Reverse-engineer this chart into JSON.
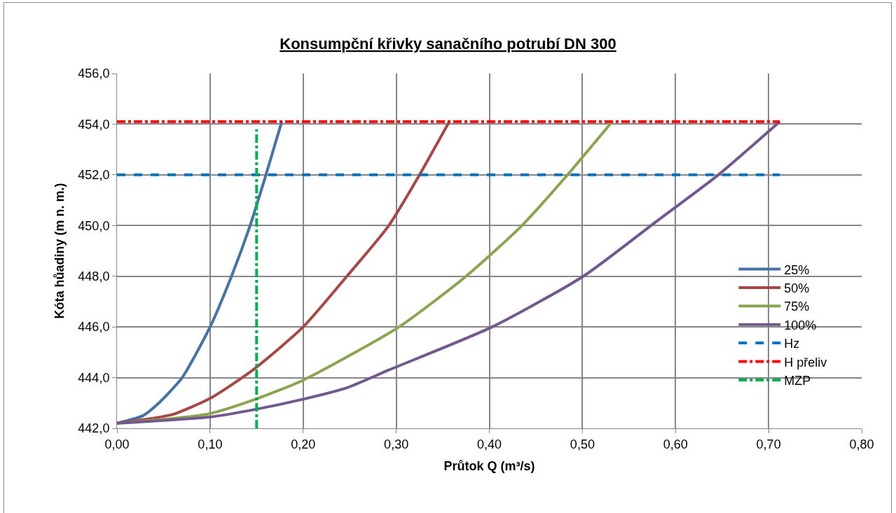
{
  "chart_data": {
    "type": "line",
    "title": "Konsumpční křivky sanačního potrubí DN 300",
    "xlabel": "Průtok Q (m³/s)",
    "ylabel": "Kóta hůadiny (m n. m.)",
    "xlim": [
      0,
      0.8
    ],
    "xticks": [
      {
        "value": 0,
        "label": "0,00"
      },
      {
        "value": 0.1,
        "label": "0,10"
      },
      {
        "value": 0.2,
        "label": "0,20"
      },
      {
        "value": 0.3,
        "label": "0,30"
      },
      {
        "value": 0.4,
        "label": "0,40"
      },
      {
        "value": 0.5,
        "label": "0,50"
      },
      {
        "value": 0.6,
        "label": "0,60"
      },
      {
        "value": 0.7,
        "label": "0,70"
      },
      {
        "value": 0.8,
        "label": "0,80"
      }
    ],
    "ylim": [
      442,
      456
    ],
    "yticks": [
      {
        "value": 442,
        "label": "442,0"
      },
      {
        "value": 444,
        "label": "444,0"
      },
      {
        "value": 446,
        "label": "446,0"
      },
      {
        "value": 448,
        "label": "448,0"
      },
      {
        "value": 450,
        "label": "450,0"
      },
      {
        "value": 452,
        "label": "452,0"
      },
      {
        "value": 454,
        "label": "454,0"
      },
      {
        "value": 456,
        "label": "456,0"
      }
    ],
    "grid": true,
    "legend": "right",
    "marker": "none",
    "series": [
      {
        "name": "25%",
        "color": "#4572a7",
        "line_style": "solid",
        "x": [
          0,
          0.028,
          0.045,
          0.07,
          0.1,
          0.123,
          0.143,
          0.16,
          0.177
        ],
        "values": [
          442.2,
          442.5,
          443.0,
          444.0,
          446.0,
          448.0,
          450.0,
          452.0,
          454.1
        ]
      },
      {
        "name": "50%",
        "color": "#aa4643",
        "line_style": "solid",
        "x": [
          0,
          0.06,
          0.101,
          0.146,
          0.2,
          0.247,
          0.292,
          0.325,
          0.357
        ],
        "values": [
          442.2,
          442.55,
          443.2,
          444.3,
          446.0,
          448.0,
          450.0,
          452.0,
          454.1
        ]
      },
      {
        "name": "75%",
        "color": "#89a54e",
        "line_style": "solid",
        "x": [
          0,
          0.096,
          0.149,
          0.2,
          0.303,
          0.375,
          0.435,
          0.484,
          0.532
        ],
        "values": [
          442.2,
          442.55,
          443.15,
          443.9,
          446.0,
          448.0,
          450.0,
          452.0,
          454.1
        ]
      },
      {
        "name": "100%",
        "color": "#71588f",
        "line_style": "solid",
        "x": [
          0,
          0.1,
          0.149,
          0.2,
          0.247,
          0.292,
          0.403,
          0.501,
          0.579,
          0.646,
          0.712
        ],
        "values": [
          442.2,
          442.45,
          442.75,
          443.15,
          443.6,
          444.3,
          446.0,
          448.0,
          450.15,
          452.0,
          454.1
        ]
      },
      {
        "name": "Hz",
        "color": "#0070c0",
        "line_style": "dashed",
        "x": [
          0,
          0.712
        ],
        "values": [
          452.0,
          452.0
        ]
      },
      {
        "name": "H přeliv",
        "color": "#ff0000",
        "line_style": "dashdot",
        "x": [
          0,
          0.712
        ],
        "values": [
          454.1,
          454.1
        ]
      },
      {
        "name": "MZP",
        "color": "#00b050",
        "line_style": "dashdot",
        "x": [
          0.15,
          0.15
        ],
        "values": [
          442.0,
          453.8
        ]
      }
    ]
  }
}
